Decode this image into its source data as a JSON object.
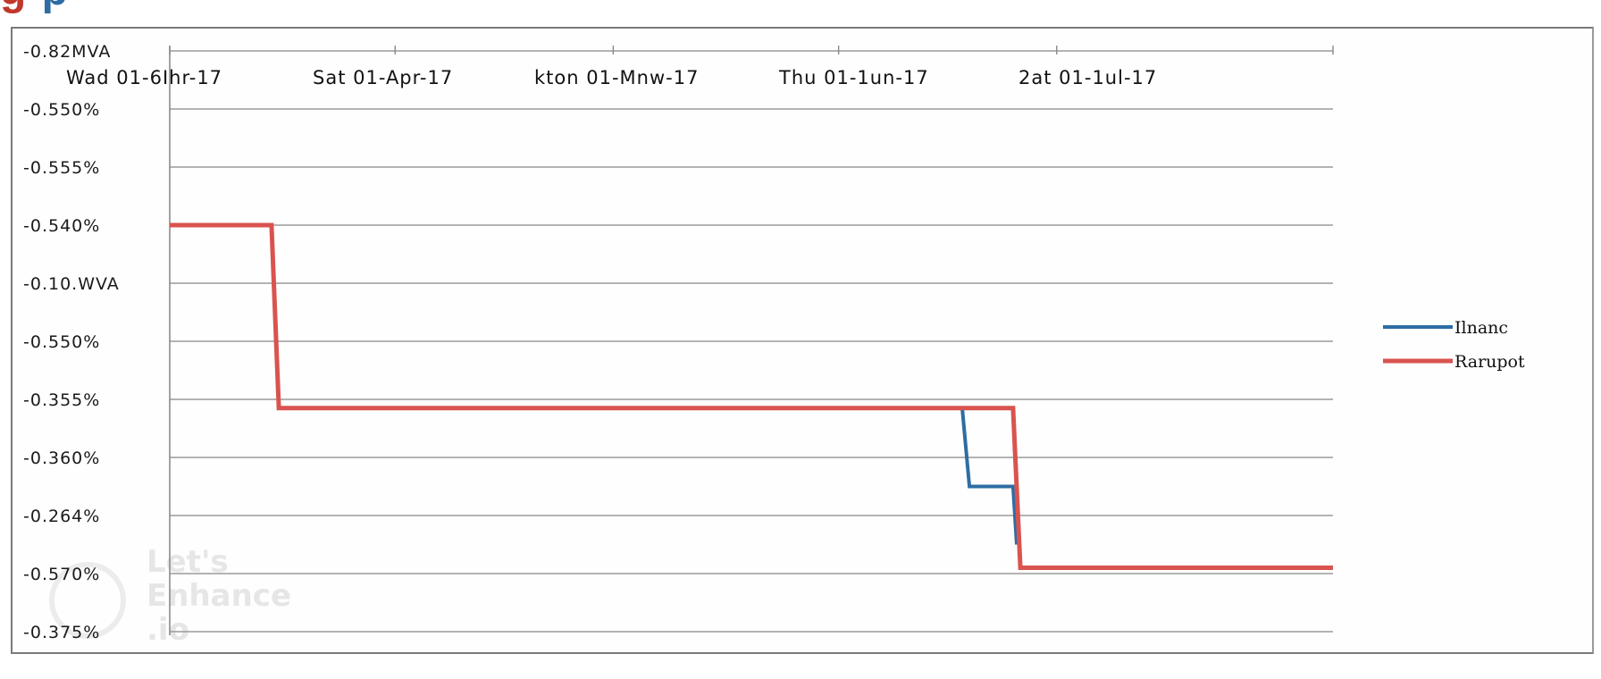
{
  "title_fragment": {
    "part1": "g",
    "part2": "p",
    "color1": "#c0392b",
    "color2": "#2e6da4"
  },
  "watermark": [
    "Let's",
    "Enhance",
    ".io"
  ],
  "chart_data": {
    "type": "line",
    "title": "",
    "xlabel": "",
    "ylabel": "",
    "grid": true,
    "legend_placement": "right",
    "x_range": [
      0,
      160
    ],
    "y_range": [
      0,
      10
    ],
    "y_ticks": [
      {
        "value": 0,
        "label": "-0.82MVA"
      },
      {
        "value": 1,
        "label": "-0.550%"
      },
      {
        "value": 2,
        "label": "-0.555%"
      },
      {
        "value": 3,
        "label": "-0.540%"
      },
      {
        "value": 4,
        "label": "-0.10.WVA"
      },
      {
        "value": 5,
        "label": "-0.550%"
      },
      {
        "value": 6,
        "label": "-0.355%"
      },
      {
        "value": 7,
        "label": "-0.360%"
      },
      {
        "value": 8,
        "label": "-0.264%"
      },
      {
        "value": 9,
        "label": "-0.570%"
      },
      {
        "value": 10,
        "label": "-0.375%"
      }
    ],
    "x_ticks": [
      {
        "value": 0,
        "label": "Wad 01-6Ihr-17"
      },
      {
        "value": 31,
        "label": "Sat 01-Apr-17"
      },
      {
        "value": 61,
        "label": "kton 01-Mnw-17"
      },
      {
        "value": 92,
        "label": "Thu 01-1un-17"
      },
      {
        "value": 122,
        "label": "2at 01-1ul-17"
      }
    ],
    "series": [
      {
        "name": "Ilnanc",
        "color": "#2e6da4",
        "points": [
          [
            0,
            3.0
          ],
          [
            14,
            3.0
          ],
          [
            15,
            6.15
          ],
          [
            109,
            6.15
          ],
          [
            110,
            7.5
          ],
          [
            116,
            7.5
          ],
          [
            116.5,
            8.5
          ]
        ]
      },
      {
        "name": "Rarupot",
        "color": "#d9534f",
        "points": [
          [
            0,
            3.0
          ],
          [
            14,
            3.0
          ],
          [
            15,
            6.15
          ],
          [
            116,
            6.15
          ],
          [
            117,
            8.9
          ],
          [
            160,
            8.9
          ]
        ]
      }
    ]
  }
}
